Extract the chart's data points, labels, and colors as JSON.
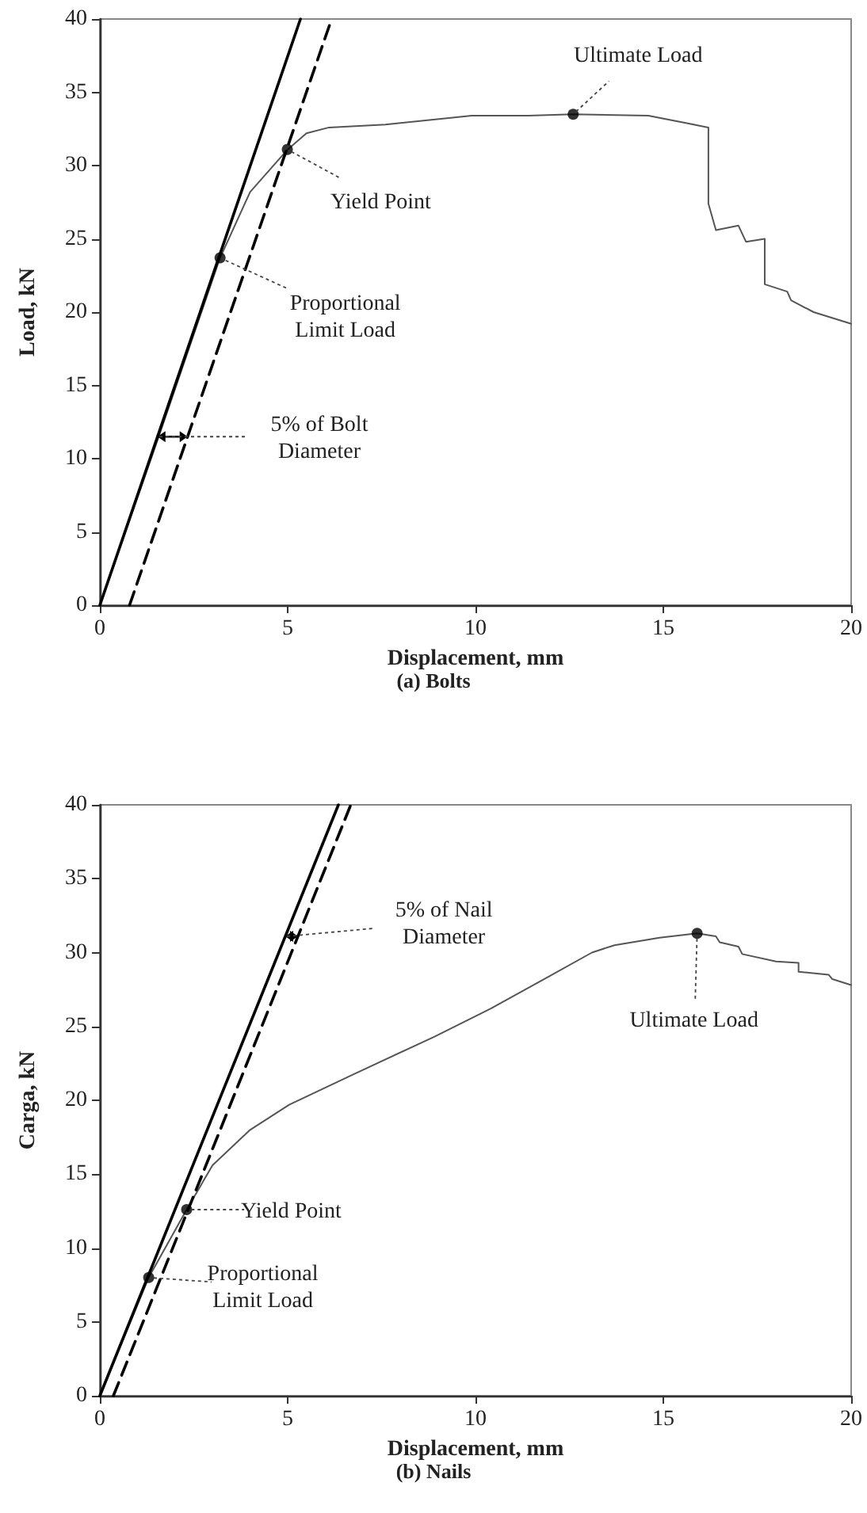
{
  "chart_data": [
    {
      "type": "line",
      "title": "(a) Bolts",
      "xlabel": "Displacement, mm",
      "ylabel": "Load, kN",
      "xlim": [
        0,
        20
      ],
      "ylim": [
        0,
        40
      ],
      "xticks": [
        0,
        5,
        10,
        15,
        20
      ],
      "yticks": [
        0,
        5,
        10,
        15,
        20,
        25,
        30,
        35,
        40
      ],
      "grid": false,
      "series": [
        {
          "color": "#555555",
          "x": [
            0,
            1.5,
            3.2,
            4,
            5,
            5.5,
            6.1,
            7.6,
            9.9,
            11.4,
            12.6,
            14.6,
            15.6,
            16.2,
            16.2,
            16.4,
            17.0,
            17.2,
            17.7,
            17.7,
            18.3,
            18.4,
            19.0,
            20
          ],
          "values": [
            0,
            11,
            23.7,
            28.2,
            31.1,
            32.2,
            32.6,
            32.8,
            33.4,
            33.4,
            33.5,
            33.4,
            32.9,
            32.6,
            27.4,
            25.6,
            25.9,
            24.8,
            25.0,
            21.9,
            21.4,
            20.8,
            20.0,
            19.2
          ]
        },
        {
          "color": "#000000",
          "line_style": "solid",
          "x": [
            0,
            5.34
          ],
          "values": [
            0,
            40
          ]
        },
        {
          "color": "#000000",
          "line_style": "dashed",
          "x": [
            0.79,
            6.17
          ],
          "values": [
            0,
            40
          ]
        },
        {
          "type": "scatter",
          "marker": "circle",
          "color": "#000000",
          "x": [
            3.2,
            4.99,
            12.6
          ],
          "values": [
            23.7,
            31.1,
            33.5
          ]
        }
      ],
      "annotations": [
        {
          "text": "Ultimate Load",
          "x": 12.6,
          "y": 33.5
        },
        {
          "text": "Yield Point",
          "x": 4.99,
          "y": 31.1
        },
        {
          "text": "Proportional Limit Load",
          "x": 3.2,
          "y": 23.7
        },
        {
          "text": "5% of Bolt Diameter",
          "x": 1.54,
          "y": 11.5
        }
      ]
    },
    {
      "type": "line",
      "title": "(b) Nails",
      "xlabel": "Displacement, mm",
      "ylabel": "Carga, kN",
      "xlim": [
        0,
        20
      ],
      "ylim": [
        0,
        40
      ],
      "xticks": [
        0,
        5,
        10,
        15,
        20
      ],
      "yticks": [
        0,
        5,
        10,
        15,
        20,
        25,
        30,
        35,
        40
      ],
      "grid": false,
      "series": [
        {
          "color": "#555555",
          "x": [
            0,
            1.3,
            2.31,
            3.0,
            4.0,
            5.04,
            6.7,
            8.9,
            10.4,
            11.9,
            13.1,
            13.7,
            14.9,
            15.9,
            16.4,
            16.5,
            17.0,
            17.1,
            18.0,
            18.6,
            18.6,
            19.4,
            19.5,
            20
          ],
          "values": [
            0,
            8.0,
            12.6,
            15.6,
            18.0,
            19.7,
            21.7,
            24.3,
            26.2,
            28.3,
            30.0,
            30.5,
            31.0,
            31.3,
            31.1,
            30.7,
            30.4,
            29.9,
            29.4,
            29.3,
            28.7,
            28.5,
            28.2,
            27.8
          ]
        },
        {
          "color": "#000000",
          "line_style": "solid",
          "x": [
            0,
            6.35
          ],
          "values": [
            0,
            40
          ]
        },
        {
          "color": "#000000",
          "line_style": "dashed",
          "x": [
            0.36,
            6.68
          ],
          "values": [
            0,
            40
          ]
        },
        {
          "type": "scatter",
          "marker": "circle",
          "color": "#000000",
          "x": [
            1.3,
            2.31,
            15.9
          ],
          "values": [
            8.0,
            12.6,
            31.3
          ]
        }
      ],
      "annotations": [
        {
          "text": "5% of Nail Diameter",
          "x": 4.94,
          "y": 31.1
        },
        {
          "text": "Yield Point",
          "x": 2.31,
          "y": 12.6
        },
        {
          "text": "Proportional Limit Load",
          "x": 1.3,
          "y": 8.0
        },
        {
          "text": "Ultimate Load",
          "x": 15.9,
          "y": 31.3
        }
      ]
    }
  ]
}
